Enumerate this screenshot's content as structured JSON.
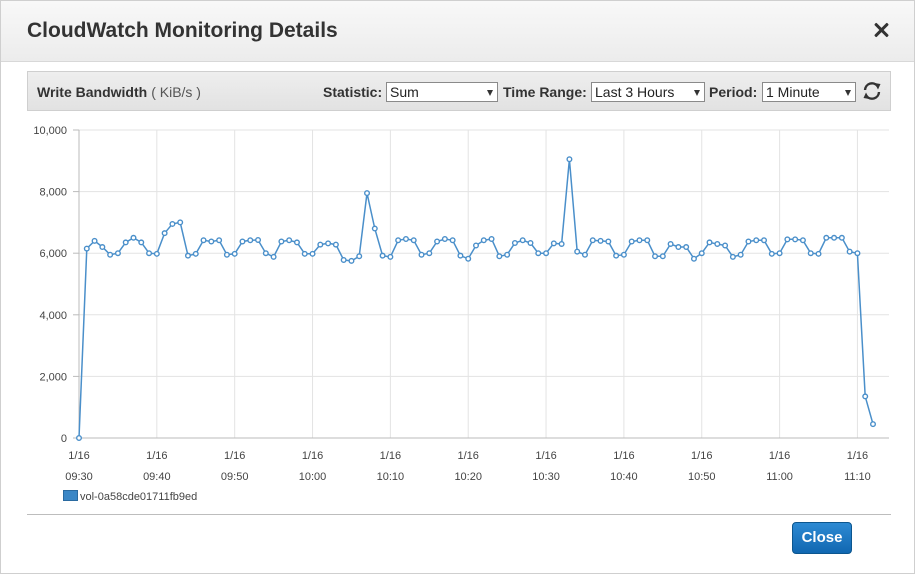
{
  "modal": {
    "title": "CloudWatch Monitoring Details",
    "close_button": "Close"
  },
  "toolbar": {
    "metric": "Write Bandwidth",
    "unit": "( KiB/s )",
    "statistic_label": "Statistic:",
    "statistic_value": "Sum",
    "time_range_label": "Time Range:",
    "time_range_value": "Last 3 Hours",
    "period_label": "Period:",
    "period_value": "1 Minute"
  },
  "colors": {
    "series": "#4a8fca",
    "close_button": "#1a73bf"
  },
  "icons": {
    "close": "close-icon",
    "refresh": "refresh-icon"
  },
  "chart_data": {
    "type": "line",
    "ylim": [
      0,
      10000
    ],
    "y_ticks": [
      "10,000",
      "8,000",
      "6,000",
      "4,000",
      "2,000",
      "0"
    ],
    "y_tick_values": [
      10000,
      8000,
      6000,
      4000,
      2000,
      0
    ],
    "x_ticks": [
      {
        "date": "1/16",
        "time": "09:30"
      },
      {
        "date": "1/16",
        "time": "09:40"
      },
      {
        "date": "1/16",
        "time": "09:50"
      },
      {
        "date": "1/16",
        "time": "10:00"
      },
      {
        "date": "1/16",
        "time": "10:10"
      },
      {
        "date": "1/16",
        "time": "10:20"
      },
      {
        "date": "1/16",
        "time": "10:30"
      },
      {
        "date": "1/16",
        "time": "10:40"
      },
      {
        "date": "1/16",
        "time": "10:50"
      },
      {
        "date": "1/16",
        "time": "11:00"
      },
      {
        "date": "1/16",
        "time": "11:10"
      }
    ],
    "grid": true,
    "legend_position": "bottom-left",
    "series": [
      {
        "name": "vol-0a58cde01711fb9ed",
        "x": [
          "09:30",
          "09:31",
          "09:32",
          "09:33",
          "09:34",
          "09:35",
          "09:36",
          "09:37",
          "09:38",
          "09:39",
          "09:40",
          "09:41",
          "09:42",
          "09:43",
          "09:44",
          "09:45",
          "09:46",
          "09:47",
          "09:48",
          "09:49",
          "09:50",
          "09:51",
          "09:52",
          "09:53",
          "09:54",
          "09:55",
          "09:56",
          "09:57",
          "09:58",
          "09:59",
          "10:00",
          "10:01",
          "10:02",
          "10:03",
          "10:04",
          "10:05",
          "10:06",
          "10:07",
          "10:08",
          "10:09",
          "10:10",
          "10:11",
          "10:12",
          "10:13",
          "10:14",
          "10:15",
          "10:16",
          "10:17",
          "10:18",
          "10:19",
          "10:20",
          "10:21",
          "10:22",
          "10:23",
          "10:24",
          "10:25",
          "10:26",
          "10:27",
          "10:28",
          "10:29",
          "10:30",
          "10:31",
          "10:32",
          "10:33",
          "10:34",
          "10:35",
          "10:36",
          "10:37",
          "10:38",
          "10:39",
          "10:40",
          "10:41",
          "10:42",
          "10:43",
          "10:44",
          "10:45",
          "10:46",
          "10:47",
          "10:48",
          "10:49",
          "10:50",
          "10:51",
          "10:52",
          "10:53",
          "10:54",
          "10:55",
          "10:56",
          "10:57",
          "10:58",
          "10:59",
          "11:00",
          "11:01",
          "11:02",
          "11:03",
          "11:04",
          "11:05",
          "11:06",
          "11:07",
          "11:08",
          "11:09",
          "11:10",
          "11:11",
          "11:12"
        ],
        "values": [
          0,
          6150,
          6400,
          6200,
          5950,
          6000,
          6350,
          6500,
          6350,
          6000,
          5980,
          6650,
          6950,
          7000,
          5920,
          5980,
          6420,
          6380,
          6420,
          5950,
          5980,
          6380,
          6420,
          6430,
          6000,
          5880,
          6380,
          6420,
          6350,
          5980,
          5980,
          6280,
          6320,
          6280,
          5780,
          5750,
          5900,
          7950,
          6800,
          5920,
          5880,
          6420,
          6460,
          6420,
          5950,
          6000,
          6380,
          6460,
          6420,
          5920,
          5820,
          6250,
          6420,
          6460,
          5900,
          5950,
          6330,
          6420,
          6330,
          6000,
          6000,
          6320,
          6300,
          9050,
          6050,
          5950,
          6420,
          6400,
          6380,
          5920,
          5950,
          6380,
          6420,
          6420,
          5900,
          5900,
          6300,
          6200,
          6200,
          5820,
          6000,
          6350,
          6300,
          6250,
          5880,
          5950,
          6380,
          6420,
          6420,
          5980,
          6000,
          6450,
          6450,
          6420,
          6000,
          5980,
          6500,
          6500,
          6500,
          6050,
          6000,
          1350,
          450
        ]
      }
    ]
  }
}
